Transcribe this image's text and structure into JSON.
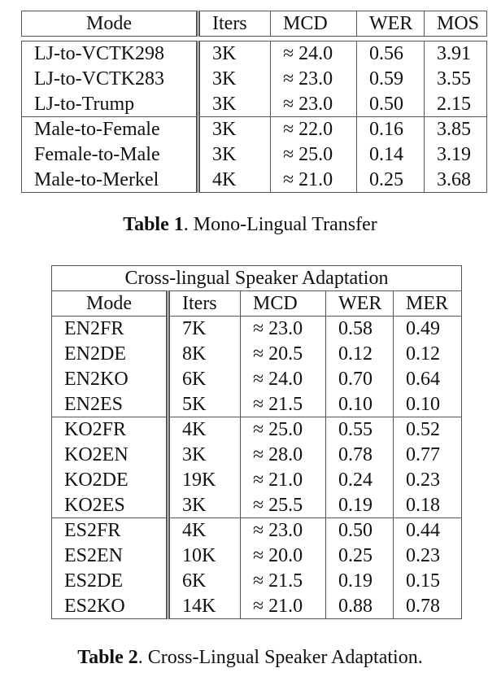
{
  "table1": {
    "headers": [
      "Mode",
      "Iters",
      "MCD",
      "WER",
      "MOS"
    ],
    "groups": [
      [
        [
          "LJ-to-VCTK298",
          "3K",
          "≈ 24.0",
          "0.56",
          "3.91"
        ],
        [
          "LJ-to-VCTK283",
          "3K",
          "≈ 23.0",
          "0.59",
          "3.55"
        ],
        [
          "LJ-to-Trump",
          "3K",
          "≈ 23.0",
          "0.50",
          "2.15"
        ]
      ],
      [
        [
          "Male-to-Female",
          "3K",
          "≈ 22.0",
          "0.16",
          "3.85"
        ],
        [
          "Female-to-Male",
          "3K",
          "≈ 25.0",
          "0.14",
          "3.19"
        ],
        [
          "Male-to-Merkel",
          "4K",
          "≈ 21.0",
          "0.25",
          "3.68"
        ]
      ]
    ],
    "caption_label": "Table 1",
    "caption_text": ". Mono-Lingual Transfer"
  },
  "table2": {
    "title": "Cross-lingual Speaker Adaptation",
    "headers": [
      "Mode",
      "Iters",
      "MCD",
      "WER",
      "MER"
    ],
    "groups": [
      [
        [
          "EN2FR",
          "7K",
          "≈ 23.0",
          "0.58",
          "0.49"
        ],
        [
          "EN2DE",
          "8K",
          "≈ 20.5",
          "0.12",
          "0.12"
        ],
        [
          "EN2KO",
          "6K",
          "≈ 24.0",
          "0.70",
          "0.64"
        ],
        [
          "EN2ES",
          "5K",
          "≈ 21.5",
          "0.10",
          "0.10"
        ]
      ],
      [
        [
          "KO2FR",
          "4K",
          "≈ 25.0",
          "0.55",
          "0.52"
        ],
        [
          "KO2EN",
          "3K",
          "≈ 28.0",
          "0.78",
          "0.77"
        ],
        [
          "KO2DE",
          "19K",
          "≈ 21.0",
          "0.24",
          "0.23"
        ],
        [
          "KO2ES",
          "3K",
          "≈ 25.5",
          "0.19",
          "0.18"
        ]
      ],
      [
        [
          "ES2FR",
          "4K",
          "≈ 23.0",
          "0.50",
          "0.44"
        ],
        [
          "ES2EN",
          "10K",
          "≈ 20.0",
          "0.25",
          "0.23"
        ],
        [
          "ES2DE",
          "6K",
          "≈ 21.5",
          "0.19",
          "0.15"
        ],
        [
          "ES2KO",
          "14K",
          "≈ 21.0",
          "0.88",
          "0.78"
        ]
      ]
    ],
    "caption_label": "Table 2",
    "caption_text": ". Cross-Lingual Speaker Adaptation."
  }
}
